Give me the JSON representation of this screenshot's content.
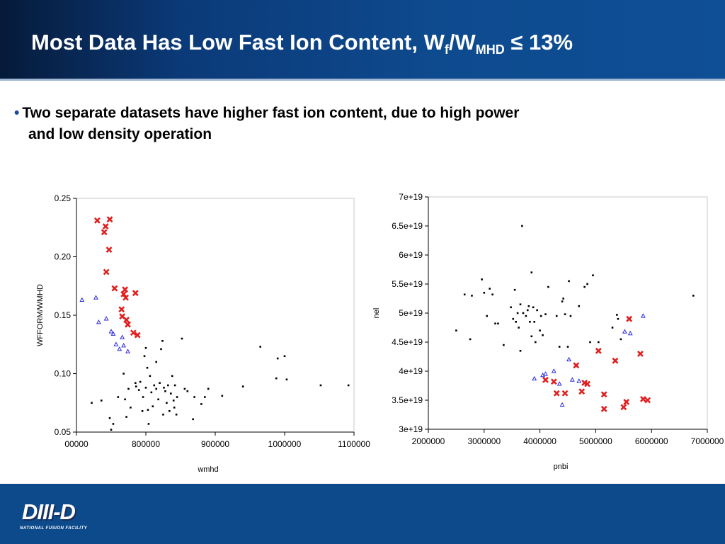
{
  "slide": {
    "title_main": "Most Data Has Low Fast Ion Content, W",
    "title_sub1": "f",
    "title_mid": "/W",
    "title_sub2": "MHD",
    "title_end": " ≤ 13%",
    "bullet_line1": "Two separate datasets have higher fast ion content, due to high power",
    "bullet_line2": "and low density operation",
    "logo_text": "DIII-D",
    "logo_sub": "NATIONAL FUSION FACILITY"
  },
  "colors": {
    "header": "#0e4a8e",
    "footer": "#0d4a8c",
    "red_series": "#e02020",
    "blue_series": "#2a2ae0",
    "black_series": "#000000"
  },
  "chart_data": [
    {
      "type": "scatter",
      "xlabel": "wmhd",
      "ylabel": "WFFORM/WMHD",
      "xlim": [
        700000,
        1100000
      ],
      "ylim": [
        0.05,
        0.25
      ],
      "x_ticks": [
        "00000",
        "800000",
        "900000",
        "1000000",
        "1100000"
      ],
      "y_ticks": [
        "0.05",
        "0.10",
        "0.15",
        "0.20",
        "0.25"
      ],
      "series": [
        {
          "marker": "x",
          "color": "#e02020",
          "points": [
            [
              730000,
              0.231
            ],
            [
              748000,
              0.232
            ],
            [
              742000,
              0.226
            ],
            [
              740000,
              0.221
            ],
            [
              747000,
              0.206
            ],
            [
              743000,
              0.187
            ],
            [
              755000,
              0.173
            ],
            [
              770000,
              0.172
            ],
            [
              785000,
              0.169
            ],
            [
              768000,
              0.168
            ],
            [
              771000,
              0.165
            ],
            [
              765000,
              0.155
            ],
            [
              766000,
              0.149
            ],
            [
              772000,
              0.146
            ],
            [
              774000,
              0.142
            ],
            [
              782000,
              0.135
            ],
            [
              788000,
              0.133
            ]
          ]
        },
        {
          "marker": "triangle",
          "color": "#2a2ae0",
          "points": [
            [
              708000,
              0.163
            ],
            [
              728000,
              0.165
            ],
            [
              732000,
              0.144
            ],
            [
              743000,
              0.147
            ],
            [
              750000,
              0.136
            ],
            [
              753000,
              0.134
            ],
            [
              757000,
              0.125
            ],
            [
              762000,
              0.121
            ],
            [
              766000,
              0.131
            ],
            [
              768000,
              0.124
            ],
            [
              774000,
              0.119
            ]
          ]
        },
        {
          "marker": "dot",
          "color": "#000000",
          "points": [
            [
              722000,
              0.075
            ],
            [
              736000,
              0.077
            ],
            [
              748000,
              0.062
            ],
            [
              753000,
              0.057
            ],
            [
              750000,
              0.052
            ],
            [
              760000,
              0.08
            ],
            [
              768000,
              0.1
            ],
            [
              770000,
              0.078
            ],
            [
              775000,
              0.087
            ],
            [
              772000,
              0.063
            ],
            [
              778000,
              0.071
            ],
            [
              785000,
              0.092
            ],
            [
              786000,
              0.089
            ],
            [
              790000,
              0.086
            ],
            [
              792000,
              0.093
            ],
            [
              795000,
              0.068
            ],
            [
              796000,
              0.08
            ],
            [
              798000,
              0.115
            ],
            [
              800000,
              0.122
            ],
            [
              802000,
              0.105
            ],
            [
              800000,
              0.088
            ],
            [
              803000,
              0.069
            ],
            [
              804000,
              0.057
            ],
            [
              806000,
              0.098
            ],
            [
              808000,
              0.084
            ],
            [
              810000,
              0.072
            ],
            [
              812000,
              0.09
            ],
            [
              815000,
              0.11
            ],
            [
              815000,
              0.087
            ],
            [
              818000,
              0.078
            ],
            [
              820000,
              0.092
            ],
            [
              822000,
              0.121
            ],
            [
              824000,
              0.128
            ],
            [
              825000,
              0.065
            ],
            [
              826000,
              0.088
            ],
            [
              828000,
              0.085
            ],
            [
              830000,
              0.075
            ],
            [
              832000,
              0.09
            ],
            [
              834000,
              0.068
            ],
            [
              836000,
              0.083
            ],
            [
              838000,
              0.098
            ],
            [
              840000,
              0.077
            ],
            [
              841000,
              0.071
            ],
            [
              842000,
              0.09
            ],
            [
              844000,
              0.065
            ],
            [
              845000,
              0.08
            ],
            [
              852000,
              0.13
            ],
            [
              856000,
              0.087
            ],
            [
              860000,
              0.085
            ],
            [
              868000,
              0.061
            ],
            [
              870000,
              0.08
            ],
            [
              880000,
              0.074
            ],
            [
              885000,
              0.08
            ],
            [
              890000,
              0.087
            ],
            [
              910000,
              0.081
            ],
            [
              940000,
              0.089
            ],
            [
              965000,
              0.123
            ],
            [
              988000,
              0.096
            ],
            [
              990000,
              0.113
            ],
            [
              1000000,
              0.115
            ],
            [
              1003000,
              0.095
            ],
            [
              1052000,
              0.09
            ],
            [
              1092000,
              0.09
            ]
          ]
        }
      ]
    },
    {
      "type": "scatter",
      "xlabel": "pnbi",
      "ylabel": "nel",
      "xlim": [
        2000000,
        7000000
      ],
      "ylim": [
        3e+19,
        7e+19
      ],
      "x_ticks": [
        "2000000",
        "3000000",
        "4000000",
        "5000000",
        "6000000",
        "7000000"
      ],
      "y_ticks": [
        "3e+19",
        "3.5e+19",
        "4e+19",
        "4.5e+19",
        "5e+19",
        "5.5e+19",
        "6e+19",
        "6.5e+19",
        "7e+19"
      ],
      "series": [
        {
          "marker": "x",
          "color": "#e02020",
          "points": [
            [
              4100000,
              3.85e+19
            ],
            [
              4250000,
              3.82e+19
            ],
            [
              4300000,
              3.62e+19
            ],
            [
              4450000,
              3.62e+19
            ],
            [
              4650000,
              4.1e+19
            ],
            [
              4750000,
              3.65e+19
            ],
            [
              4800000,
              3.8e+19
            ],
            [
              4850000,
              3.78e+19
            ],
            [
              5050000,
              4.35e+19
            ],
            [
              5150000,
              3.35e+19
            ],
            [
              5150000,
              3.6e+19
            ],
            [
              5350000,
              4.18e+19
            ],
            [
              5500000,
              3.38e+19
            ],
            [
              5550000,
              3.47e+19
            ],
            [
              5600000,
              4.9e+19
            ],
            [
              5800000,
              4.3e+19
            ],
            [
              5850000,
              3.52e+19
            ],
            [
              5930000,
              3.5e+19
            ]
          ]
        },
        {
          "marker": "triangle",
          "color": "#2a2ae0",
          "points": [
            [
              3900000,
              3.87e+19
            ],
            [
              4050000,
              3.93e+19
            ],
            [
              4100000,
              3.95e+19
            ],
            [
              4250000,
              4e+19
            ],
            [
              4350000,
              3.78e+19
            ],
            [
              4400000,
              3.42e+19
            ],
            [
              4520000,
              4.2e+19
            ],
            [
              4580000,
              3.85e+19
            ],
            [
              4700000,
              3.83e+19
            ],
            [
              5520000,
              4.68e+19
            ],
            [
              5620000,
              4.65e+19
            ],
            [
              5850000,
              4.95e+19
            ]
          ]
        },
        {
          "marker": "dot",
          "color": "#000000",
          "points": [
            [
              2500000,
              4.7e+19
            ],
            [
              2650000,
              5.32e+19
            ],
            [
              2750000,
              4.55e+19
            ],
            [
              2780000,
              5.3e+19
            ],
            [
              2960000,
              5.58e+19
            ],
            [
              3000000,
              5.35e+19
            ],
            [
              3050000,
              4.95e+19
            ],
            [
              3100000,
              5.42e+19
            ],
            [
              3150000,
              5.32e+19
            ],
            [
              3200000,
              4.82e+19
            ],
            [
              3250000,
              4.82e+19
            ],
            [
              3350000,
              4.45e+19
            ],
            [
              3480000,
              5.1e+19
            ],
            [
              3520000,
              4.9e+19
            ],
            [
              3550000,
              5.4e+19
            ],
            [
              3570000,
              4.85e+19
            ],
            [
              3600000,
              5e+19
            ],
            [
              3620000,
              4.75e+19
            ],
            [
              3650000,
              4.35e+19
            ],
            [
              3650000,
              5.15e+19
            ],
            [
              3680000,
              6.5e+19
            ],
            [
              3700000,
              5e+19
            ],
            [
              3750000,
              4.95e+19
            ],
            [
              3780000,
              5.05e+19
            ],
            [
              3800000,
              5.12e+19
            ],
            [
              3820000,
              4.85e+19
            ],
            [
              3850000,
              5.7e+19
            ],
            [
              3850000,
              4.6e+19
            ],
            [
              3880000,
              5.1e+19
            ],
            [
              3900000,
              4.85e+19
            ],
            [
              3920000,
              4.5e+19
            ],
            [
              3950000,
              5.05e+19
            ],
            [
              4000000,
              4.7e+19
            ],
            [
              4020000,
              4.95e+19
            ],
            [
              4050000,
              4.62e+19
            ],
            [
              4100000,
              4.98e+19
            ],
            [
              4150000,
              5.45e+19
            ],
            [
              4300000,
              4.95e+19
            ],
            [
              4350000,
              4.42e+19
            ],
            [
              4400000,
              5.2e+19
            ],
            [
              4420000,
              5.25e+19
            ],
            [
              4450000,
              4.98e+19
            ],
            [
              4500000,
              4.42e+19
            ],
            [
              4520000,
              5.55e+19
            ],
            [
              4550000,
              4.95e+19
            ],
            [
              4700000,
              5.12e+19
            ],
            [
              4800000,
              5.45e+19
            ],
            [
              4850000,
              5.5e+19
            ],
            [
              4900000,
              4.5e+19
            ],
            [
              4950000,
              5.65e+19
            ],
            [
              5050000,
              4.5e+19
            ],
            [
              5300000,
              4.75e+19
            ],
            [
              5380000,
              4.97e+19
            ],
            [
              5400000,
              4.9e+19
            ],
            [
              5450000,
              4.55e+19
            ],
            [
              6750000,
              5.3e+19
            ]
          ]
        }
      ]
    }
  ]
}
